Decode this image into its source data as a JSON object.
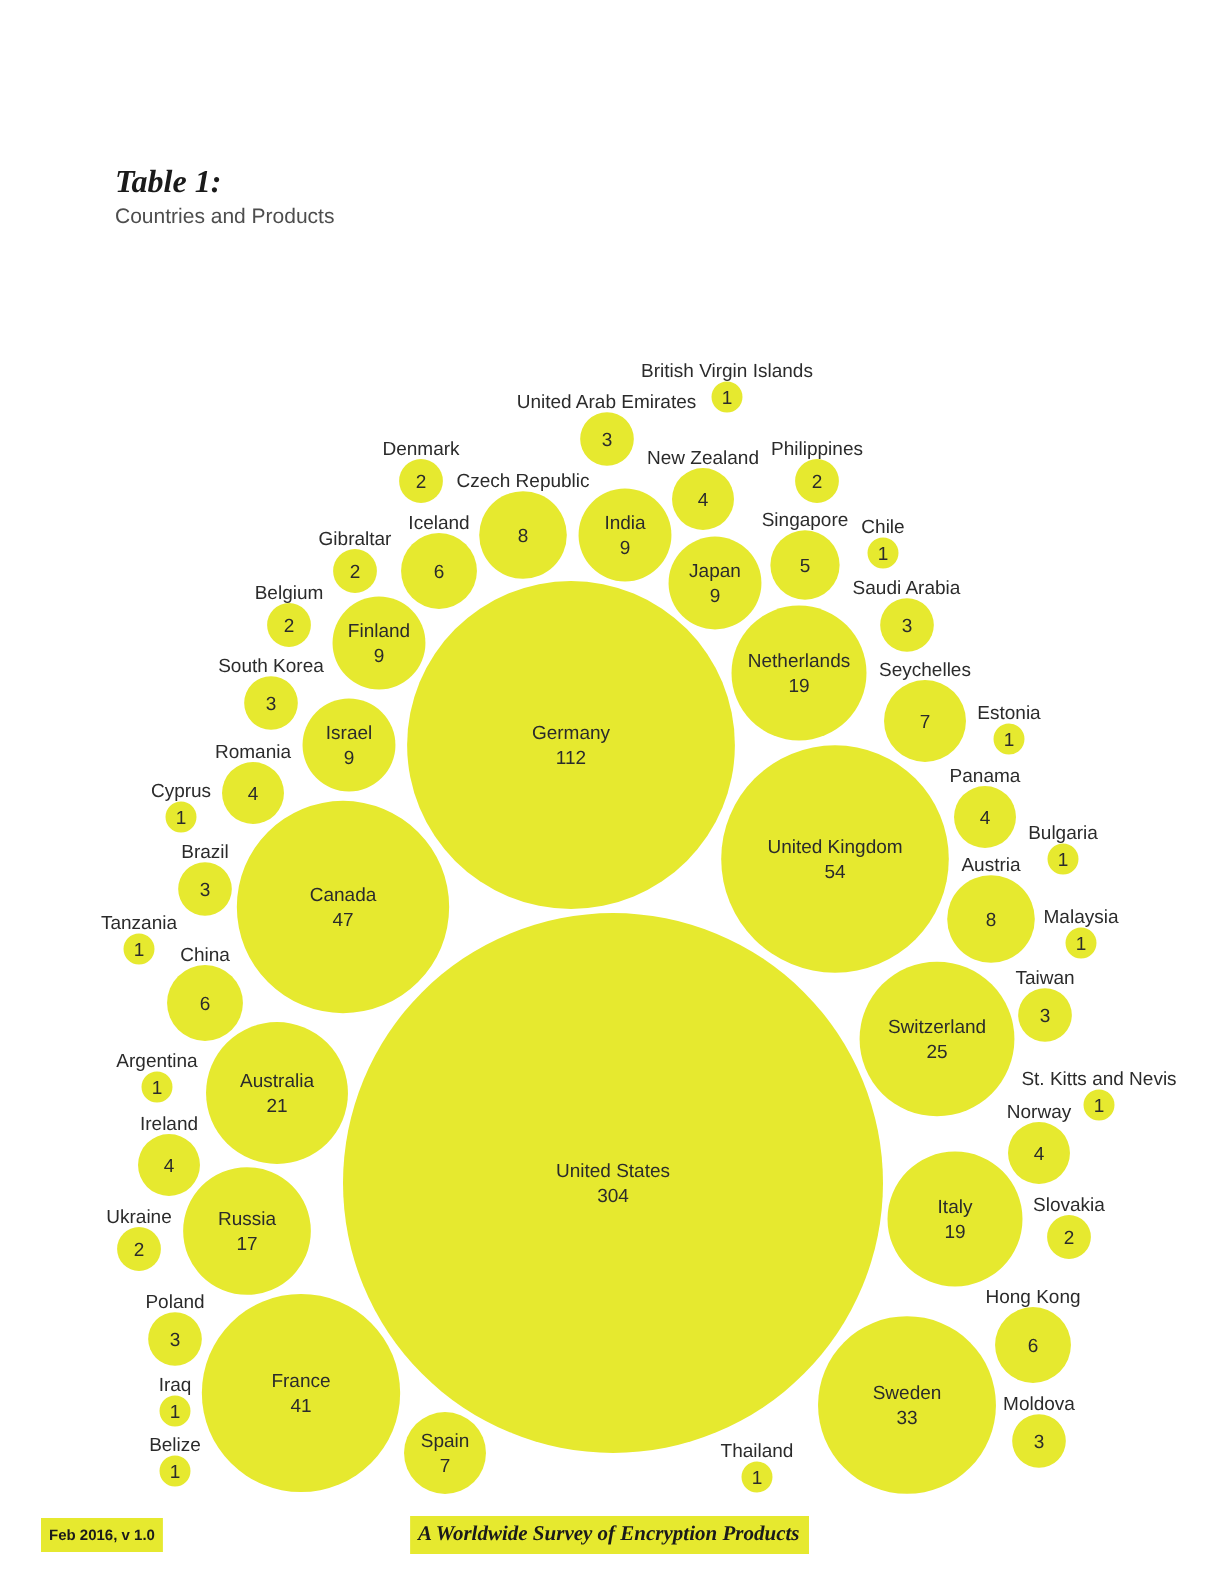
{
  "chart_data": {
    "type": "other",
    "title": "Table 1:",
    "subtitle": "Countries and Products",
    "categories": [
      "Canada",
      "Switzerland",
      "Spain",
      "Seychelles",
      "Iceland",
      "Israel",
      "Australia",
      "United Kingdom",
      "Gibraltar",
      "Saudi Arabia",
      "Singapore",
      "Thailand",
      "Argentina",
      "Hong Kong",
      "Iraq",
      "South Korea",
      "France",
      "United Arab Emirates",
      "Slovakia",
      "Belize",
      "Japan",
      "China",
      "St. Kitts and Nevis",
      "Estonia",
      "India",
      "Chile",
      "British Virgin Islands",
      "Malaysia",
      "Bulgaria",
      "Belgium",
      "Denmark",
      "Ukraine",
      "Taiwan",
      "Russia",
      "Finland",
      "Brazil",
      "Norway",
      "Cyprus",
      "Czech Republic",
      "Tanzania",
      "Romania",
      "Italy",
      "Poland",
      "New Zealand",
      "Panama",
      "Philippines",
      "Austria",
      "Ireland",
      "Sweden",
      "Moldova",
      "Germany",
      "Netherlands",
      "United States"
    ],
    "values": [
      47,
      25,
      7,
      7,
      6,
      9,
      21,
      54,
      2,
      3,
      5,
      1,
      1,
      6,
      1,
      3,
      41,
      3,
      2,
      1,
      9,
      6,
      1,
      1,
      9,
      1,
      1,
      1,
      1,
      2,
      2,
      2,
      3,
      17,
      9,
      3,
      4,
      1,
      8,
      1,
      4,
      19,
      3,
      4,
      4,
      2,
      8,
      4,
      33,
      3,
      112,
      19,
      304
    ],
    "color": "#e6e92f",
    "data_labels": true,
    "annotations": [
      "Feb 2016, v 1.0",
      "A Worldwide Survey of Encryption Products"
    ]
  }
}
